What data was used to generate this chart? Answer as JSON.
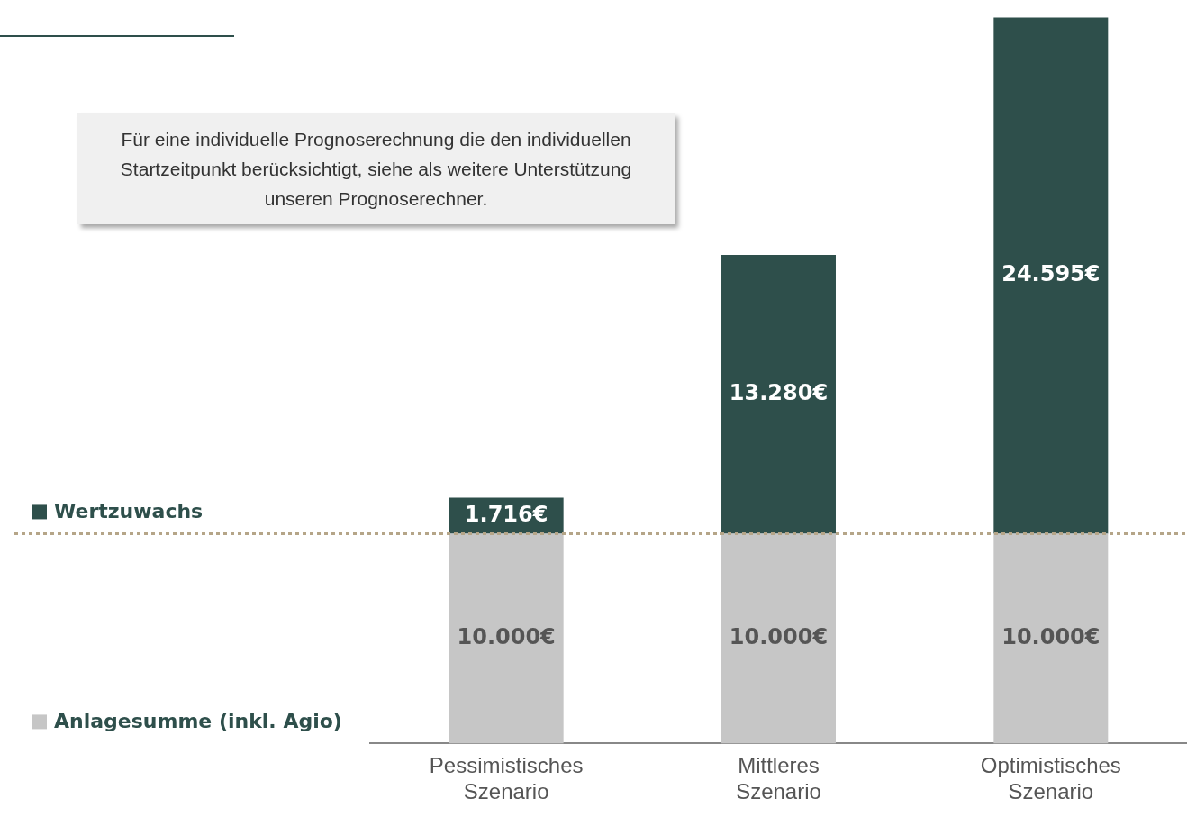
{
  "chart_data": {
    "type": "bar",
    "stacked": true,
    "legend": "left",
    "grid": false,
    "categories": [
      "Pessimistisches Szenario",
      "Mittleres Szenario",
      "Optimistisches Szenario"
    ],
    "series": [
      {
        "name": "Anlagesumme (inkl. Agio)",
        "color": "#c6c6c6",
        "values": [
          10000,
          10000,
          10000
        ],
        "value_labels": [
          "10.000€",
          "10.000€",
          "10.000€"
        ]
      },
      {
        "name": "Wertzuwachs",
        "color": "#2e4f4b",
        "values": [
          1716,
          13280,
          24595
        ],
        "value_labels": [
          "1.716€",
          "13.280€",
          "24.595€"
        ]
      }
    ],
    "ref_lines": [
      {
        "axis": "y",
        "value": 10000,
        "color": "#b5a588",
        "line_style": "dotted"
      }
    ],
    "annotations": [
      "Für eine individuelle Prognoserechnung die den individuellen Startzeitpunkt berücksichtigt, siehe als weitere Unterstützung unseren Prognoserechner."
    ]
  }
}
